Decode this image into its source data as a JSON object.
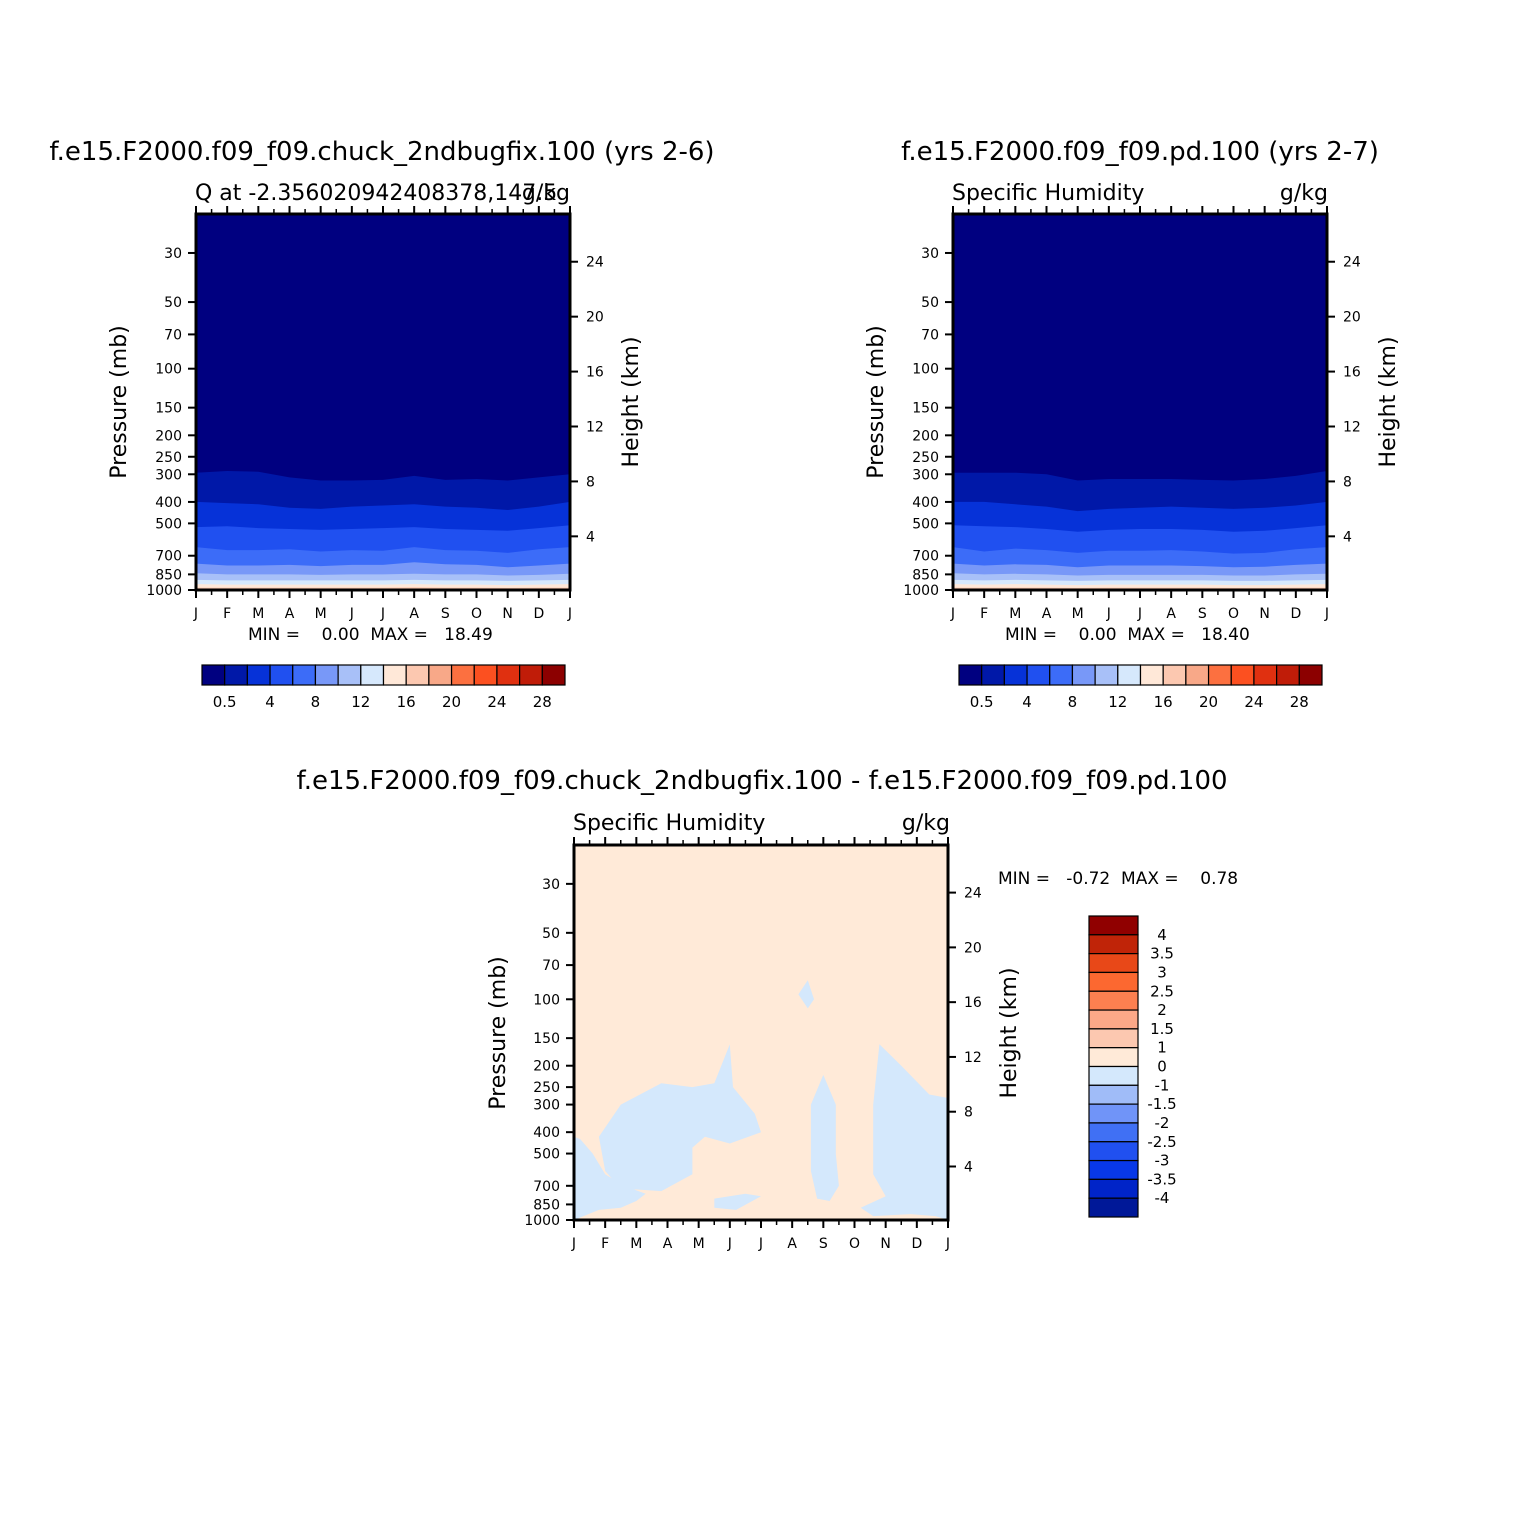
{
  "figure": {
    "colors": {
      "cmap": [
        "#000080",
        "#0018a8",
        "#0632d8",
        "#2050f0",
        "#3c6cf8",
        "#7898f8",
        "#a8c0f8",
        "#d6e8fc",
        "#ffe8d8",
        "#fcc8b0",
        "#f8a888",
        "#fc7040",
        "#fc5020",
        "#e03010",
        "#c01c08",
        "#8c0000"
      ],
      "diff_cmap": [
        "#001898",
        "#0024c8",
        "#0838e8",
        "#2050f0",
        "#4070f4",
        "#7094f8",
        "#a0bcf8",
        "#d4e8fc",
        "#ffead8",
        "#fcc8b0",
        "#fca888",
        "#fc8050",
        "#fc6830",
        "#e84818",
        "#c02408",
        "#900000"
      ]
    },
    "panels": [
      {
        "title": "f.e15.F2000.f09_f09.chuck_2ndbugfix.100 (yrs 2-6)",
        "left_label": "Q  at  -2.356020942408378,147.5",
        "right_label": "g/kg",
        "y_left_label": "Pressure (mb)",
        "y_right_label": "Height (km)",
        "stats": "MIN =    0.00  MAX =   18.49"
      },
      {
        "title": "f.e15.F2000.f09_f09.pd.100 (yrs 2-7)",
        "left_label": "Specific Humidity",
        "right_label": "g/kg",
        "y_left_label": "Pressure (mb)",
        "y_right_label": "Height (km)",
        "stats": "MIN =    0.00  MAX =   18.40"
      },
      {
        "title": "f.e15.F2000.f09_f09.chuck_2ndbugfix.100 - f.e15.F2000.f09_f09.pd.100",
        "left_label": "Specific Humidity",
        "right_label": "g/kg",
        "y_left_label": "Pressure (mb)",
        "y_right_label": "Height (km)",
        "stats": "MIN =   -0.72  MAX =    0.78"
      }
    ]
  },
  "chart_data": [
    {
      "type": "contour",
      "title": "f.e15.F2000.f09_f09.chuck_2ndbugfix.100 (yrs 2-6)",
      "x_tick_labels": [
        "J",
        "F",
        "M",
        "A",
        "M",
        "J",
        "J",
        "A",
        "S",
        "O",
        "N",
        "D",
        "J"
      ],
      "pressure_ticks": [
        30,
        50,
        70,
        100,
        150,
        200,
        250,
        300,
        400,
        500,
        700,
        850,
        1000
      ],
      "height_ticks": [
        4,
        8,
        12,
        16,
        20,
        24
      ],
      "ylim_mb": [
        20,
        1000
      ],
      "colorbar_labels": [
        "0.5",
        "4",
        "8",
        "12",
        "16",
        "20",
        "24",
        "28"
      ],
      "boundaries_mb": [
        [
          295,
          290,
          292,
          310,
          320,
          320,
          318,
          305,
          318,
          315,
          320,
          310,
          300
        ],
        [
          400,
          405,
          410,
          425,
          430,
          420,
          415,
          410,
          420,
          425,
          435,
          420,
          400
        ],
        [
          520,
          515,
          525,
          530,
          535,
          530,
          525,
          520,
          530,
          535,
          540,
          525,
          510
        ],
        [
          640,
          660,
          660,
          655,
          670,
          660,
          665,
          640,
          660,
          665,
          680,
          655,
          640
        ],
        [
          760,
          775,
          775,
          770,
          780,
          770,
          770,
          750,
          765,
          770,
          790,
          775,
          760
        ],
        [
          840,
          850,
          850,
          850,
          855,
          850,
          850,
          845,
          850,
          850,
          860,
          855,
          845
        ],
        [
          900,
          905,
          905,
          905,
          905,
          905,
          905,
          900,
          905,
          905,
          910,
          905,
          900
        ],
        [
          940,
          945,
          945,
          945,
          945,
          945,
          945,
          940,
          945,
          945,
          950,
          945,
          940
        ],
        [
          975,
          975,
          975,
          975,
          975,
          975,
          975,
          972,
          975,
          975,
          978,
          975,
          975
        ]
      ],
      "stats": {
        "min": 0.0,
        "max": 18.49
      }
    },
    {
      "type": "contour",
      "title": "f.e15.F2000.f09_f09.pd.100 (yrs 2-7)",
      "x_tick_labels": [
        "J",
        "F",
        "M",
        "A",
        "M",
        "J",
        "J",
        "A",
        "S",
        "O",
        "N",
        "D",
        "J"
      ],
      "pressure_ticks": [
        30,
        50,
        70,
        100,
        150,
        200,
        250,
        300,
        400,
        500,
        700,
        850,
        1000
      ],
      "height_ticks": [
        4,
        8,
        12,
        16,
        20,
        24
      ],
      "ylim_mb": [
        20,
        1000
      ],
      "colorbar_labels": [
        "0.5",
        "4",
        "8",
        "12",
        "16",
        "20",
        "24",
        "28"
      ],
      "boundaries_mb": [
        [
          295,
          295,
          295,
          300,
          320,
          315,
          315,
          315,
          318,
          320,
          315,
          305,
          290
        ],
        [
          400,
          400,
          410,
          420,
          440,
          430,
          425,
          420,
          425,
          430,
          425,
          415,
          400
        ],
        [
          510,
          515,
          520,
          530,
          545,
          535,
          530,
          530,
          535,
          545,
          540,
          525,
          510
        ],
        [
          640,
          670,
          650,
          660,
          680,
          665,
          665,
          660,
          670,
          685,
          680,
          655,
          640
        ],
        [
          760,
          775,
          765,
          770,
          790,
          775,
          775,
          775,
          780,
          790,
          785,
          770,
          760
        ],
        [
          840,
          850,
          845,
          850,
          860,
          855,
          855,
          855,
          855,
          860,
          860,
          850,
          845
        ],
        [
          900,
          905,
          900,
          905,
          910,
          905,
          905,
          905,
          905,
          910,
          910,
          905,
          900
        ],
        [
          940,
          945,
          940,
          945,
          950,
          945,
          945,
          945,
          945,
          950,
          950,
          945,
          940
        ],
        [
          975,
          975,
          975,
          975,
          978,
          975,
          975,
          975,
          975,
          978,
          978,
          975,
          975
        ]
      ],
      "stats": {
        "min": 0.0,
        "max": 18.4
      }
    },
    {
      "type": "contour",
      "title": "f.e15.F2000.f09_f09.chuck_2ndbugfix.100 - f.e15.F2000.f09_f09.pd.100",
      "x_tick_labels": [
        "J",
        "F",
        "M",
        "A",
        "M",
        "J",
        "J",
        "A",
        "S",
        "O",
        "N",
        "D",
        "J"
      ],
      "pressure_ticks": [
        30,
        50,
        70,
        100,
        150,
        200,
        250,
        300,
        400,
        500,
        700,
        850,
        1000
      ],
      "height_ticks": [
        4,
        8,
        12,
        16,
        20,
        24
      ],
      "ylim_mb": [
        20,
        1000
      ],
      "colorbar_labels": [
        "4",
        "3.5",
        "3",
        "2.5",
        "2",
        "1.5",
        "1",
        "0",
        "-1",
        "-1.5",
        "-2",
        "-2.5",
        "-3",
        "-3.5",
        "-4"
      ],
      "negative_regions": [
        {
          "label": "region-1",
          "points": [
            [
              0,
              1000
            ],
            [
              0.8,
              900
            ],
            [
              1.5,
              880
            ],
            [
              2.0,
              820
            ],
            [
              2.3,
              760
            ],
            [
              1.6,
              700
            ],
            [
              1.0,
              620
            ],
            [
              0.6,
              500
            ],
            [
              0.2,
              430
            ],
            [
              0,
              420
            ]
          ]
        },
        {
          "label": "region-2",
          "points": [
            [
              1.5,
              300
            ],
            [
              2.8,
              240
            ],
            [
              3.8,
              250
            ],
            [
              4.5,
              240
            ],
            [
              5.0,
              160
            ],
            [
              5.1,
              250
            ],
            [
              5.8,
              330
            ],
            [
              6.0,
              400
            ],
            [
              5.0,
              450
            ],
            [
              4.2,
              420
            ],
            [
              3.8,
              470
            ],
            [
              3.8,
              620
            ],
            [
              2.8,
              740
            ],
            [
              1.5,
              720
            ],
            [
              1.0,
              600
            ],
            [
              0.8,
              420
            ]
          ]
        },
        {
          "label": "region-3",
          "points": [
            [
              4.5,
              800
            ],
            [
              5.5,
              760
            ],
            [
              6.0,
              780
            ],
            [
              5.2,
              900
            ],
            [
              4.5,
              880
            ]
          ]
        },
        {
          "label": "region-4",
          "points": [
            [
              7.6,
              300
            ],
            [
              8.0,
              220
            ],
            [
              8.4,
              300
            ],
            [
              8.4,
              500
            ],
            [
              8.5,
              700
            ],
            [
              8.2,
              820
            ],
            [
              7.8,
              800
            ],
            [
              7.6,
              600
            ]
          ]
        },
        {
          "label": "region-5",
          "points": [
            [
              9.6,
              300
            ],
            [
              9.8,
              160
            ],
            [
              10.5,
              200
            ],
            [
              11.4,
              270
            ],
            [
              12,
              280
            ],
            [
              12,
              1000
            ],
            [
              11.6,
              960
            ],
            [
              10.8,
              940
            ],
            [
              9.6,
              960
            ],
            [
              9.2,
              880
            ],
            [
              10.0,
              780
            ],
            [
              9.6,
              620
            ],
            [
              9.6,
              450
            ]
          ]
        },
        {
          "label": "region-6",
          "points": [
            [
              7.2,
              95
            ],
            [
              7.5,
              82
            ],
            [
              7.7,
              100
            ],
            [
              7.5,
              110
            ]
          ]
        }
      ],
      "stats": {
        "min": -0.72,
        "max": 0.78
      }
    }
  ]
}
